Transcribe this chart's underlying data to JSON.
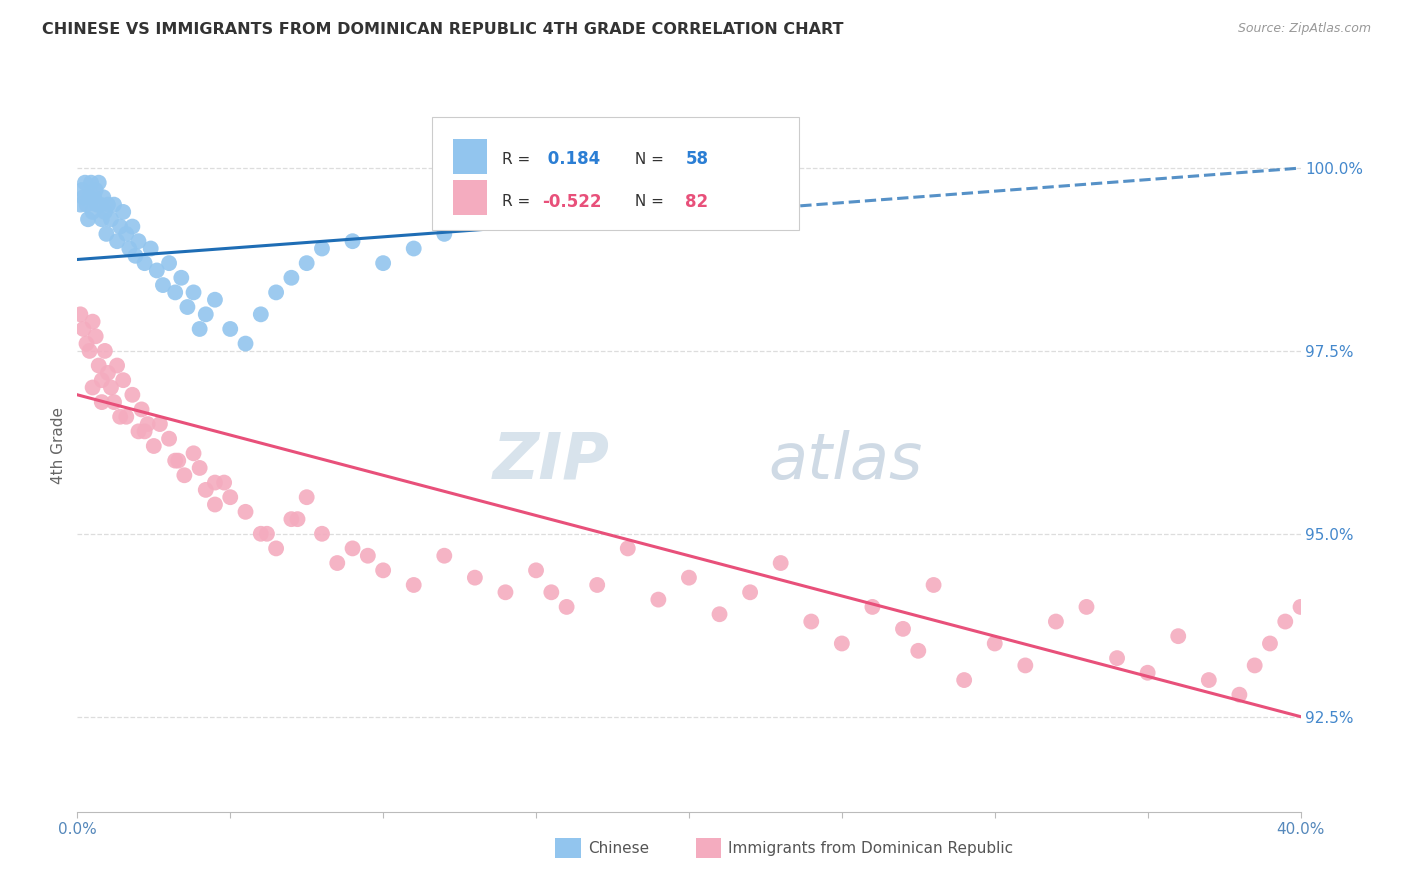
{
  "title": "CHINESE VS IMMIGRANTS FROM DOMINICAN REPUBLIC 4TH GRADE CORRELATION CHART",
  "source": "Source: ZipAtlas.com",
  "ylabel": "4th Grade",
  "ytick_labels": [
    "92.5%",
    "95.0%",
    "97.5%",
    "100.0%"
  ],
  "ytick_values": [
    92.5,
    95.0,
    97.5,
    100.0
  ],
  "xlim": [
    0.0,
    40.0
  ],
  "ylim": [
    91.2,
    101.2
  ],
  "legend_r_blue": "0.184",
  "legend_n_blue": "58",
  "legend_r_pink": "-0.522",
  "legend_n_pink": "82",
  "legend_label_blue": "Chinese",
  "legend_label_pink": "Immigrants from Dominican Republic",
  "blue_color": "#92C5EE",
  "pink_color": "#F4ACBF",
  "blue_line_color": "#1E6DB5",
  "pink_line_color": "#E8507A",
  "blue_scatter_x": [
    0.1,
    0.15,
    0.2,
    0.25,
    0.3,
    0.35,
    0.4,
    0.45,
    0.5,
    0.55,
    0.6,
    0.65,
    0.7,
    0.75,
    0.8,
    0.85,
    0.9,
    0.95,
    1.0,
    1.1,
    1.2,
    1.3,
    1.4,
    1.5,
    1.6,
    1.7,
    1.8,
    1.9,
    2.0,
    2.2,
    2.4,
    2.6,
    2.8,
    3.0,
    3.2,
    3.4,
    3.6,
    3.8,
    4.0,
    4.2,
    4.5,
    5.0,
    5.5,
    6.0,
    6.5,
    7.0,
    7.5,
    8.0,
    9.0,
    10.0,
    11.0,
    12.0,
    13.0,
    14.0,
    16.0,
    18.0,
    20.0,
    22.0
  ],
  "blue_scatter_y": [
    99.5,
    99.7,
    99.6,
    99.8,
    99.5,
    99.3,
    99.6,
    99.8,
    99.4,
    99.6,
    99.7,
    99.5,
    99.8,
    99.5,
    99.3,
    99.6,
    99.4,
    99.1,
    99.5,
    99.3,
    99.5,
    99.0,
    99.2,
    99.4,
    99.1,
    98.9,
    99.2,
    98.8,
    99.0,
    98.7,
    98.9,
    98.6,
    98.4,
    98.7,
    98.3,
    98.5,
    98.1,
    98.3,
    97.8,
    98.0,
    98.2,
    97.8,
    97.6,
    98.0,
    98.3,
    98.5,
    98.7,
    98.9,
    99.0,
    98.7,
    98.9,
    99.1,
    99.3,
    99.5,
    99.6,
    99.7,
    99.8,
    99.9
  ],
  "pink_scatter_x": [
    0.1,
    0.2,
    0.3,
    0.4,
    0.5,
    0.6,
    0.7,
    0.8,
    0.9,
    1.0,
    1.1,
    1.2,
    1.3,
    1.5,
    1.6,
    1.8,
    2.0,
    2.1,
    2.3,
    2.5,
    2.7,
    3.0,
    3.2,
    3.5,
    3.8,
    4.0,
    4.2,
    4.5,
    4.8,
    5.0,
    5.5,
    6.0,
    6.5,
    7.0,
    7.5,
    8.0,
    8.5,
    9.0,
    10.0,
    11.0,
    12.0,
    13.0,
    14.0,
    15.0,
    16.0,
    17.0,
    18.0,
    19.0,
    20.0,
    21.0,
    22.0,
    23.0,
    24.0,
    25.0,
    26.0,
    27.0,
    28.0,
    30.0,
    31.0,
    32.0,
    33.0,
    34.0,
    35.0,
    36.0,
    37.0,
    38.0,
    38.5,
    39.0,
    39.5,
    40.0,
    27.5,
    29.0,
    15.5,
    9.5,
    6.2,
    3.3,
    2.2,
    1.4,
    0.8,
    0.5,
    4.5,
    7.2
  ],
  "pink_scatter_y": [
    98.0,
    97.8,
    97.6,
    97.5,
    97.9,
    97.7,
    97.3,
    97.1,
    97.5,
    97.2,
    97.0,
    96.8,
    97.3,
    97.1,
    96.6,
    96.9,
    96.4,
    96.7,
    96.5,
    96.2,
    96.5,
    96.3,
    96.0,
    95.8,
    96.1,
    95.9,
    95.6,
    95.4,
    95.7,
    95.5,
    95.3,
    95.0,
    94.8,
    95.2,
    95.5,
    95.0,
    94.6,
    94.8,
    94.5,
    94.3,
    94.7,
    94.4,
    94.2,
    94.5,
    94.0,
    94.3,
    94.8,
    94.1,
    94.4,
    93.9,
    94.2,
    94.6,
    93.8,
    93.5,
    94.0,
    93.7,
    94.3,
    93.5,
    93.2,
    93.8,
    94.0,
    93.3,
    93.1,
    93.6,
    93.0,
    92.8,
    93.2,
    93.5,
    93.8,
    94.0,
    93.4,
    93.0,
    94.2,
    94.7,
    95.0,
    96.0,
    96.4,
    96.6,
    96.8,
    97.0,
    95.7,
    95.2
  ],
  "background_color": "#FFFFFF",
  "grid_color": "#DDDDDD",
  "watermark_color": "#C8D8E8"
}
